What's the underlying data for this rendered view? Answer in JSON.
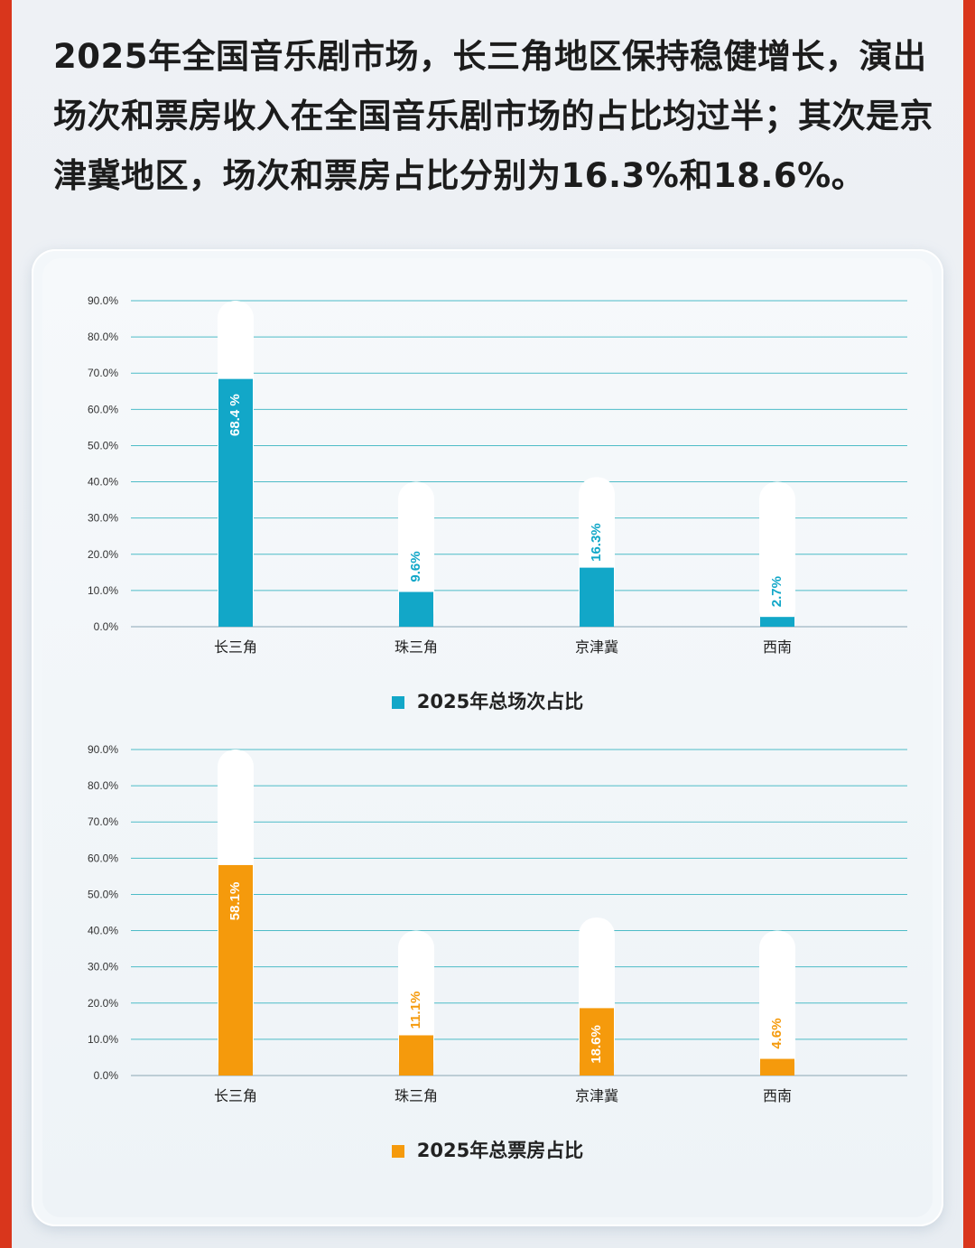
{
  "headline": "2025年全国音乐剧市场，长三角地区保持稳健增长，演出场次和票房收入在全国音乐剧市场的占比均过半；其次是京津冀地区，场次和票房占比分别为16.3%和18.6%。",
  "chart_data": [
    {
      "type": "bar",
      "categories": [
        "长三角",
        "珠三角",
        "京津冀",
        "西南"
      ],
      "series": [
        {
          "name": "2025年总场次占比",
          "values": [
            68.4,
            9.6,
            16.3,
            2.7
          ]
        }
      ],
      "data_labels": [
        "68.4 %",
        "9.6%",
        "16.3%",
        "2.7%"
      ],
      "y_ticks": [
        "0.0%",
        "10.0%",
        "20.0%",
        "30.0%",
        "40.0%",
        "50.0%",
        "60.0%",
        "70.0%",
        "80.0%",
        "90.0%"
      ],
      "ylim": [
        0,
        90
      ],
      "color": "#12a7c8",
      "legend_position": "bottom",
      "grid": true
    },
    {
      "type": "bar",
      "categories": [
        "长三角",
        "珠三角",
        "京津冀",
        "西南"
      ],
      "series": [
        {
          "name": "2025年总票房占比",
          "values": [
            58.1,
            11.1,
            18.6,
            4.6
          ]
        }
      ],
      "data_labels": [
        "58.1%",
        "11.1%",
        "18.6%",
        "4.6%"
      ],
      "y_ticks": [
        "0.0%",
        "10.0%",
        "20.0%",
        "30.0%",
        "40.0%",
        "50.0%",
        "60.0%",
        "70.0%",
        "80.0%",
        "90.0%"
      ],
      "ylim": [
        0,
        90
      ],
      "color": "#f59a0c",
      "legend_position": "bottom",
      "grid": true
    }
  ]
}
